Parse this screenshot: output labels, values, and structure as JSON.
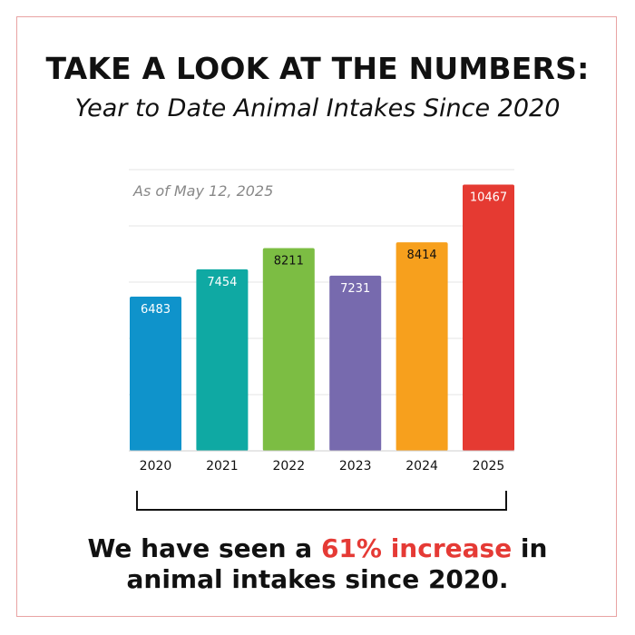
{
  "title": "TAKE A LOOK AT THE NUMBERS:",
  "subtitle": "Year to Date Animal Intakes Since 2020",
  "annotation": "As of May 12, 2025",
  "footer": {
    "pre": "We have seen a ",
    "highlight": "61% increase",
    "post": " in",
    "line2": "animal intakes since 2020.",
    "highlight_color": "#e53a35"
  },
  "chart_data": {
    "type": "bar",
    "title": "Year to Date Animal Intakes Since 2020",
    "categories": [
      "2020",
      "2021",
      "2022",
      "2023",
      "2024",
      "2025"
    ],
    "values": [
      6483,
      7454,
      8211,
      7231,
      8414,
      10467
    ],
    "colors": [
      "#0f93cb",
      "#0fa9a3",
      "#7cbd43",
      "#776aae",
      "#f7a01d",
      "#e53a32"
    ],
    "label_colors": [
      "#ffffff",
      "#ffffff",
      "#111111",
      "#ffffff",
      "#111111",
      "#ffffff"
    ],
    "xlabel": "",
    "ylabel": "",
    "ylim": [
      1000,
      11000
    ],
    "grid": true,
    "legend": "none"
  }
}
